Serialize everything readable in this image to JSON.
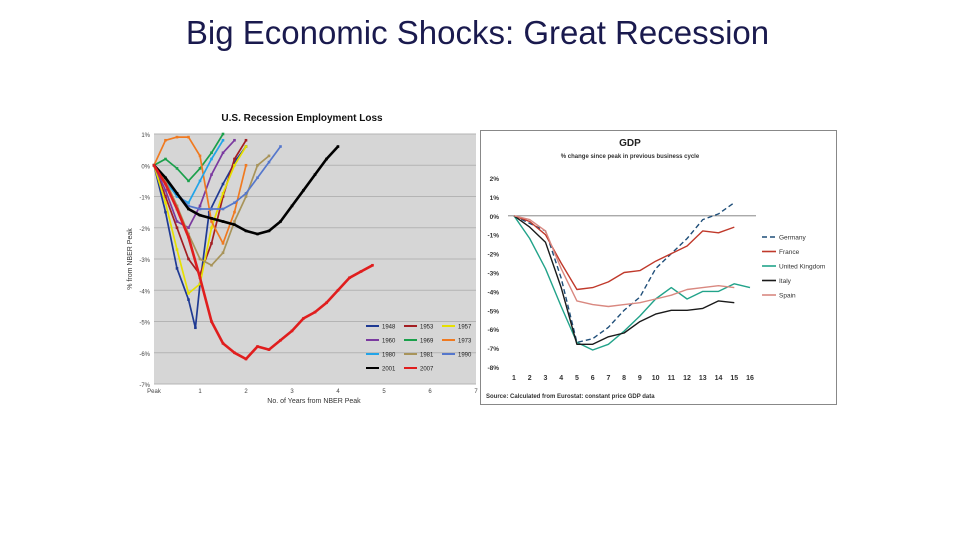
{
  "slide": {
    "title": "Big Economic Shocks: Great Recession"
  },
  "chart_data": [
    {
      "type": "line",
      "title": "U.S. Recession Employment Loss",
      "ylabel": "% from NBER Peak",
      "xlabel": "No. of Years from NBER Peak",
      "xlim": [
        0,
        7
      ],
      "ylim": [
        -7,
        1
      ],
      "x_ticks": [
        "Peak",
        "1",
        "2",
        "3",
        "4",
        "5",
        "6",
        "7"
      ],
      "y_ticks": [
        "1%",
        "0%",
        "-1%",
        "-2%",
        "-3%",
        "-4%",
        "-5%",
        "-6%",
        "-7%"
      ],
      "grid": true,
      "legend": "bottom-right",
      "series": [
        {
          "name": "1948",
          "color": "#1f3a93",
          "x": [
            0,
            0.25,
            0.5,
            0.75,
            0.9,
            1.0,
            1.2,
            1.5,
            1.8,
            2.0
          ],
          "y": [
            0,
            -1.5,
            -3.3,
            -4.3,
            -5.2,
            -3.8,
            -1.5,
            -0.6,
            0.2,
            0.6
          ]
        },
        {
          "name": "1953",
          "color": "#a31e22",
          "x": [
            0,
            0.25,
            0.5,
            0.75,
            1.0,
            1.25,
            1.5,
            1.75,
            2.0
          ],
          "y": [
            0,
            -1.0,
            -2.0,
            -3.0,
            -3.5,
            -2.5,
            -1.0,
            0.2,
            0.8
          ]
        },
        {
          "name": "1957",
          "color": "#e6e000",
          "x": [
            0,
            0.25,
            0.5,
            0.75,
            1.0,
            1.25,
            1.5,
            1.75,
            2.0
          ],
          "y": [
            0,
            -1.2,
            -2.7,
            -4.1,
            -3.8,
            -2.0,
            -0.9,
            0.0,
            0.6
          ]
        },
        {
          "name": "1960",
          "color": "#7b3aa0",
          "x": [
            0,
            0.25,
            0.5,
            0.75,
            1.0,
            1.25,
            1.5,
            1.75
          ],
          "y": [
            0,
            -0.8,
            -1.8,
            -2.0,
            -1.3,
            -0.3,
            0.4,
            0.8
          ]
        },
        {
          "name": "1969",
          "color": "#1aa04b",
          "x": [
            0,
            0.25,
            0.5,
            0.75,
            1.0,
            1.25,
            1.5
          ],
          "y": [
            0,
            0.2,
            -0.1,
            -0.5,
            -0.1,
            0.4,
            1.0
          ]
        },
        {
          "name": "1973",
          "color": "#f07a20",
          "x": [
            0,
            0.25,
            0.5,
            0.75,
            1.0,
            1.25,
            1.5,
            1.75,
            2.0
          ],
          "y": [
            0,
            0.8,
            0.9,
            0.9,
            0.3,
            -1.8,
            -2.5,
            -1.5,
            0.0
          ]
        },
        {
          "name": "1980",
          "color": "#22a4e8",
          "x": [
            0,
            0.25,
            0.5,
            0.75,
            1.0,
            1.25,
            1.5
          ],
          "y": [
            0,
            -0.5,
            -1.0,
            -1.2,
            -0.5,
            0.2,
            0.8
          ]
        },
        {
          "name": "1981",
          "color": "#a8945a",
          "x": [
            0,
            0.25,
            0.5,
            0.75,
            1.0,
            1.25,
            1.5,
            1.75,
            2.0,
            2.25,
            2.5
          ],
          "y": [
            0,
            -0.5,
            -1.3,
            -2.2,
            -3.0,
            -3.2,
            -2.8,
            -1.8,
            -1.0,
            0.0,
            0.3
          ]
        },
        {
          "name": "1990",
          "color": "#5577cc",
          "x": [
            0,
            0.25,
            0.5,
            0.75,
            1.0,
            1.25,
            1.5,
            1.75,
            2.0,
            2.25,
            2.5,
            2.75
          ],
          "y": [
            0,
            -0.4,
            -0.9,
            -1.3,
            -1.4,
            -1.4,
            -1.4,
            -1.2,
            -0.9,
            -0.4,
            0.1,
            0.6
          ]
        },
        {
          "name": "2001",
          "color": "#000000",
          "x": [
            0,
            0.25,
            0.5,
            0.75,
            1.0,
            1.25,
            1.5,
            1.75,
            2.0,
            2.25,
            2.5,
            2.75,
            3.0,
            3.25,
            3.5,
            3.75,
            4.0
          ],
          "y": [
            0,
            -0.4,
            -0.9,
            -1.4,
            -1.6,
            -1.7,
            -1.8,
            -1.9,
            -2.1,
            -2.2,
            -2.1,
            -1.8,
            -1.3,
            -0.8,
            -0.3,
            0.2,
            0.6
          ]
        },
        {
          "name": "2007",
          "color": "#e01e1e",
          "x": [
            0,
            0.25,
            0.5,
            0.75,
            1.0,
            1.25,
            1.5,
            1.75,
            2.0,
            2.25,
            2.5,
            2.75,
            3.0,
            3.25,
            3.5,
            3.75,
            4.0,
            4.25,
            4.5,
            4.75
          ],
          "y": [
            0,
            -0.6,
            -1.4,
            -2.3,
            -3.6,
            -5.0,
            -5.7,
            -6.0,
            -6.2,
            -5.8,
            -5.9,
            -5.6,
            -5.3,
            -4.9,
            -4.7,
            -4.4,
            -4.0,
            -3.6,
            -3.4,
            -3.2
          ]
        }
      ]
    },
    {
      "type": "line",
      "title": "GDP",
      "subtitle": "% change since peak in previous business cycle",
      "source": "Source: Calculated from Eurostat: constant price GDP data",
      "xlim": [
        1,
        16
      ],
      "ylim": [
        -8,
        2
      ],
      "x_ticks": [
        "1",
        "2",
        "3",
        "4",
        "5",
        "6",
        "7",
        "8",
        "9",
        "10",
        "11",
        "12",
        "13",
        "14",
        "15",
        "16"
      ],
      "y_ticks": [
        "2%",
        "1%",
        "0%",
        "-1%",
        "-2%",
        "-3%",
        "-4%",
        "-5%",
        "-6%",
        "-7%",
        "-8%"
      ],
      "grid": false,
      "legend": "right",
      "series": [
        {
          "name": "Germany",
          "color": "#1f4e79",
          "dash": "5,3",
          "x": [
            1,
            2,
            3,
            4,
            5,
            6,
            7,
            8,
            9,
            10,
            11,
            12,
            13,
            14,
            15
          ],
          "y": [
            0,
            -0.4,
            -0.8,
            -3.3,
            -6.7,
            -6.5,
            -5.9,
            -5.0,
            -4.3,
            -2.8,
            -2.0,
            -1.2,
            -0.2,
            0.1,
            0.7
          ]
        },
        {
          "name": "France",
          "color": "#c0392b",
          "dash": "",
          "x": [
            1,
            2,
            3,
            4,
            5,
            6,
            7,
            8,
            9,
            10,
            11,
            12,
            13,
            14,
            15
          ],
          "y": [
            0,
            -0.3,
            -1.0,
            -2.5,
            -3.9,
            -3.8,
            -3.5,
            -3.0,
            -2.9,
            -2.4,
            -2.0,
            -1.6,
            -0.8,
            -0.9,
            -0.6
          ]
        },
        {
          "name": "United Kingdom",
          "color": "#22a38a",
          "dash": "",
          "x": [
            1,
            2,
            3,
            4,
            5,
            6,
            7,
            8,
            9,
            10,
            11,
            12,
            13,
            14,
            15,
            16
          ],
          "y": [
            0,
            -1.2,
            -2.8,
            -4.8,
            -6.7,
            -7.1,
            -6.8,
            -6.1,
            -5.3,
            -4.4,
            -3.8,
            -4.4,
            -4.0,
            -4.0,
            -3.6,
            -3.8
          ]
        },
        {
          "name": "Italy",
          "color": "#1a1a1a",
          "dash": "",
          "x": [
            1,
            2,
            3,
            4,
            5,
            6,
            7,
            8,
            9,
            10,
            11,
            12,
            13,
            14,
            15
          ],
          "y": [
            0,
            -0.6,
            -1.4,
            -3.8,
            -6.8,
            -6.8,
            -6.4,
            -6.2,
            -5.6,
            -5.2,
            -5.0,
            -5.0,
            -4.9,
            -4.5,
            -4.6
          ]
        },
        {
          "name": "Spain",
          "color": "#d98880",
          "dash": "",
          "x": [
            1,
            2,
            3,
            4,
            5,
            6,
            7,
            8,
            9,
            10,
            11,
            12,
            13,
            14,
            15
          ],
          "y": [
            0,
            -0.2,
            -0.8,
            -2.8,
            -4.5,
            -4.7,
            -4.8,
            -4.7,
            -4.6,
            -4.4,
            -4.2,
            -3.9,
            -3.8,
            -3.7,
            -3.8
          ]
        }
      ]
    }
  ]
}
